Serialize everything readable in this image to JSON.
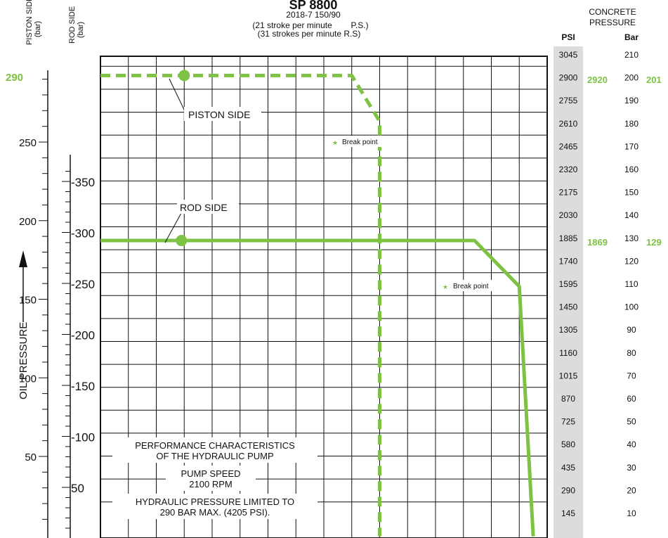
{
  "chart_data": {
    "type": "line",
    "title": "SP 8800",
    "subtitle_lines": [
      "2018-7 150/90",
      "(21 stroke per minute        P.S.)",
      "(31 strokes per minute R.S)"
    ],
    "ylabel": "OIL PRESSURE",
    "axis_headers": {
      "piston": [
        "PISTON SIDE",
        "(bar)"
      ],
      "rod": [
        "ROD SIDE",
        "(bar)"
      ]
    },
    "concrete_header": [
      "CONCRETE",
      "PRESSURE"
    ],
    "psi_header": "PSI",
    "bar_header": "Bar",
    "piston_axis": {
      "ticks": [
        "50",
        "100",
        "150",
        "200",
        "250"
      ],
      "ylim": [
        0,
        300
      ]
    },
    "rod_axis": {
      "ticks": [
        "50",
        "-100",
        "-150",
        "-200",
        "-250",
        "-300",
        "-350"
      ],
      "ylim": [
        0,
        400
      ]
    },
    "concrete_axis": {
      "psi": [
        "3045",
        "2900",
        "2755",
        "2610",
        "2465",
        "2320",
        "2175",
        "2030",
        "1885",
        "1740",
        "1595",
        "1450",
        "1305",
        "1160",
        "1015",
        "870",
        "725",
        "580",
        "435",
        "290",
        "145"
      ],
      "bar": [
        "210",
        "200",
        "190",
        "180",
        "170",
        "160",
        "150",
        "140",
        "130",
        "120",
        "110",
        "100",
        "90",
        "80",
        "70",
        "60",
        "50",
        "40",
        "30",
        "20",
        "10"
      ],
      "ylim": [
        0,
        215
      ]
    },
    "highlights": {
      "piston_max": "290",
      "piston_psi": "2920",
      "piston_bar": "201",
      "rod_psi": "1869",
      "rod_bar": "129"
    },
    "series": [
      {
        "name": "PISTON SIDE",
        "style": "dashed",
        "color": "#7dc242",
        "points": [
          [
            0,
            201
          ],
          [
            90,
            201
          ],
          [
            100,
            181
          ],
          [
            100,
            0
          ]
        ],
        "marker_x": 30
      },
      {
        "name": "ROD SIDE",
        "style": "solid",
        "color": "#7dc242",
        "points": [
          [
            0,
            129
          ],
          [
            134,
            129
          ],
          [
            150,
            109
          ],
          [
            155,
            0
          ]
        ],
        "marker_x": 29
      }
    ],
    "annotations": {
      "break_point": "Break point",
      "info": [
        "PERFORMANCE CHARACTERISTICS",
        "OF THE HYDRAULIC PUMP",
        "PUMP SPEED",
        "2100 RPM",
        "HYDRAULIC PRESSURE LIMITED TO",
        "290 BAR MAX. (4205 PSI)."
      ]
    },
    "x_grid_divisions": 16,
    "grid": true
  }
}
